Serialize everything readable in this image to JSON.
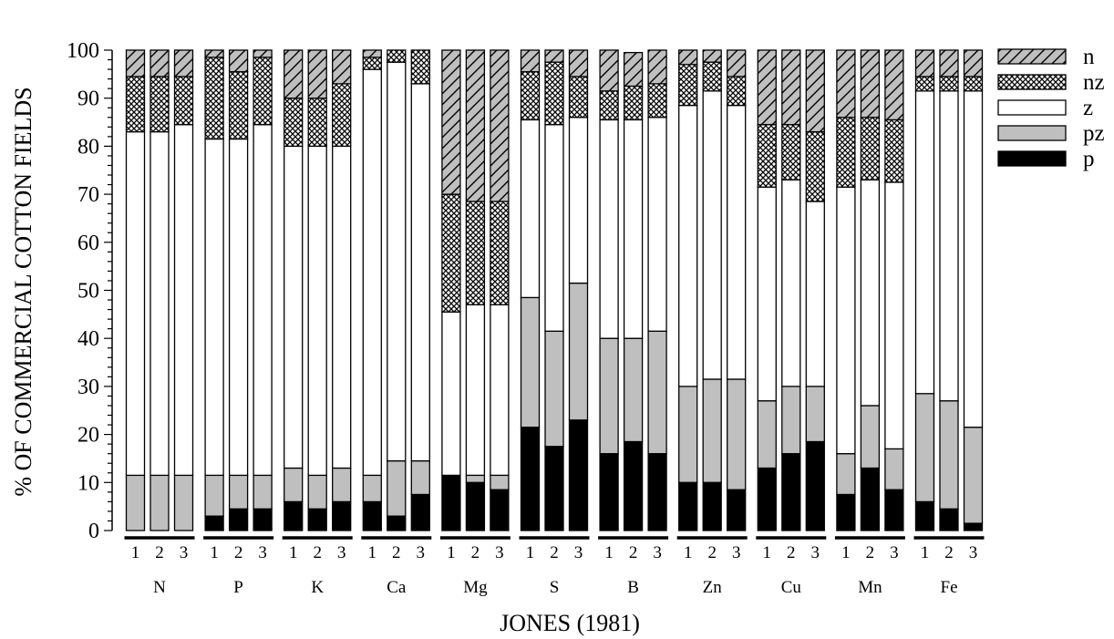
{
  "chart_data": {
    "type": "bar",
    "stacked": true,
    "title": "",
    "xlabel": "JONES (1981)",
    "ylabel": "% OF COMMERCIAL COTTON FIELDS",
    "ylim": [
      0,
      100
    ],
    "yticks": [
      0,
      10,
      20,
      30,
      40,
      50,
      60,
      70,
      80,
      90,
      100
    ],
    "grid": false,
    "legend_position": "right",
    "groups": [
      "N",
      "P",
      "K",
      "Ca",
      "Mg",
      "S",
      "B",
      "Zn",
      "Cu",
      "Mn",
      "Fe"
    ],
    "subcategories": [
      "1",
      "2",
      "3"
    ],
    "series": [
      {
        "name": "p",
        "fill": "#000000",
        "pattern": "solid",
        "values": [
          0,
          0,
          0,
          3,
          4.5,
          4.5,
          6,
          4.5,
          6,
          6,
          3,
          7.5,
          11.5,
          10,
          8.5,
          21.5,
          17.5,
          23,
          16,
          18.5,
          16,
          10,
          10,
          8.5,
          13,
          16,
          18.5,
          7.5,
          13,
          8.5,
          6,
          4.5,
          1.5
        ]
      },
      {
        "name": "pz",
        "fill": "#bfbfbf",
        "pattern": "solid",
        "values": [
          11.5,
          11.5,
          11.5,
          8.5,
          7,
          7,
          7,
          7,
          7,
          5.5,
          11.5,
          7,
          0,
          1.5,
          3,
          27,
          24,
          28.5,
          24,
          21.5,
          25.5,
          20,
          21.5,
          23,
          14,
          14,
          11.5,
          8.5,
          13,
          8.5,
          22.5,
          22.5,
          20
        ]
      },
      {
        "name": "z",
        "fill": "#ffffff",
        "pattern": "solid",
        "values": [
          71.5,
          71.5,
          73,
          70,
          70,
          73,
          67,
          68.5,
          67,
          84.5,
          83,
          78.5,
          34,
          35.5,
          35.5,
          37,
          43,
          34.5,
          45.5,
          45.5,
          44.5,
          58.5,
          60,
          57,
          44.5,
          43,
          38.5,
          55.5,
          47,
          55.5,
          63,
          64.5,
          70
        ]
      },
      {
        "name": "nz",
        "fill": "#ffffff",
        "pattern": "crosshatch",
        "values": [
          11.5,
          11.5,
          10,
          17,
          14,
          14,
          10,
          10,
          13,
          2.5,
          2.5,
          7,
          24.5,
          21.5,
          21.5,
          10,
          13,
          8.5,
          6,
          7,
          7,
          8.5,
          6,
          6,
          13,
          11.5,
          14.5,
          14.5,
          13,
          13,
          3,
          3,
          3
        ]
      },
      {
        "name": "n",
        "fill": "#bfbfbf",
        "pattern": "diagonal",
        "values": [
          5.5,
          5.5,
          5.5,
          1.5,
          4.5,
          1.5,
          10,
          10,
          7,
          1.5,
          0,
          0,
          30,
          31.5,
          31.5,
          4.5,
          2.5,
          5.5,
          8.5,
          7,
          7,
          3,
          2.5,
          5.5,
          15.5,
          15.5,
          17,
          14,
          14,
          14.5,
          5.5,
          5.5,
          5.5
        ]
      }
    ]
  }
}
